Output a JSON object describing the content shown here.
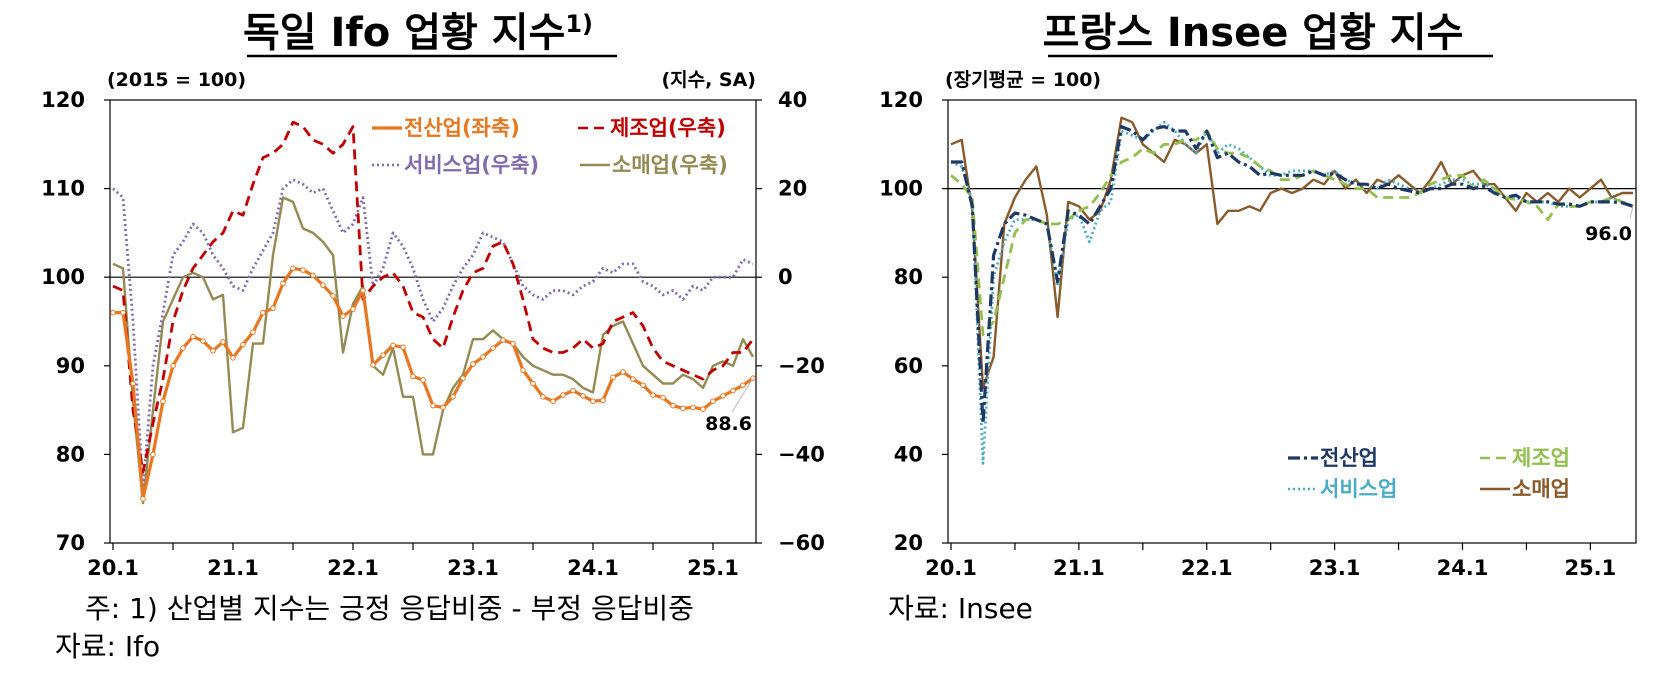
{
  "chart_data": [
    {
      "type": "line",
      "title": "독일 Ifo 업황 지수",
      "title_sup": "1)",
      "left_unit": "(2015 = 100)",
      "right_unit": "(지수, SA)",
      "y_left_ticks": [
        "120",
        "110",
        "100",
        "90",
        "80",
        "70"
      ],
      "y_right_ticks": [
        "40",
        "20",
        "0",
        "-20",
        "-40",
        "-60"
      ],
      "ylim_left": [
        70,
        120
      ],
      "ylim_right": [
        -60,
        40
      ],
      "x_ticks": [
        "20.1",
        "21.1",
        "22.1",
        "23.1",
        "24.1",
        "25.1"
      ],
      "reference_line_left": 100,
      "last_value_label": "88.6",
      "legend_placement": "top-right",
      "series": [
        {
          "name": "전산업(좌축)",
          "axis": "left",
          "color": "#E87722",
          "style": "solid-marker",
          "values": [
            96,
            96,
            88,
            75,
            80,
            86,
            90,
            92,
            93.3,
            92.8,
            91.7,
            92.7,
            90.9,
            92.4,
            93.8,
            96,
            96.5,
            99.3,
            101,
            100.8,
            100.2,
            99.1,
            97.9,
            95.6,
            96.4,
            98.5,
            90.1,
            91.2,
            92.3,
            92.1,
            88.8,
            88.4,
            85.5,
            85.3,
            86.5,
            88.6,
            90.2,
            91,
            92,
            92.9,
            92.5,
            89.5,
            88,
            86.5,
            86,
            86.7,
            87.2,
            86.6,
            86,
            86.1,
            88.7,
            89.3,
            88.5,
            87.8,
            86.7,
            86.4,
            85.5,
            85.2,
            85.3,
            85.1,
            86,
            86.6,
            87.2,
            87.8,
            88.6
          ]
        },
        {
          "name": "제조업(우축)",
          "axis": "right",
          "color": "#C00000",
          "style": "dashed",
          "values": [
            -2,
            -3,
            -30,
            -44,
            -33,
            -23,
            -10,
            -3,
            2,
            5,
            8,
            10,
            15,
            14,
            21,
            27,
            28,
            30,
            35,
            34,
            31,
            30,
            28,
            30,
            34,
            -5,
            -2,
            0,
            1,
            -2,
            -8,
            -9,
            -14,
            -16,
            -9,
            -3,
            1,
            2,
            7,
            8,
            3,
            -5,
            -14,
            -16,
            -17,
            -17,
            -16,
            -14,
            -16,
            -15,
            -10,
            -9,
            -8,
            -11,
            -16,
            -19,
            -20,
            -21,
            -22,
            -23,
            -21,
            -20,
            -17,
            -17,
            -14
          ]
        },
        {
          "name": "서비스업(우축)",
          "axis": "right",
          "color": "#7F6BAE",
          "style": "dotted",
          "values": [
            20,
            18,
            -10,
            -48,
            -20,
            -8,
            5,
            8,
            12,
            10,
            5,
            2,
            -2,
            -3,
            2,
            6,
            10,
            20,
            22,
            21,
            19,
            20,
            15,
            10,
            12,
            18,
            -2,
            2,
            10,
            7,
            2,
            -5,
            -10,
            -7,
            -2,
            2,
            5,
            10,
            9,
            8,
            3,
            -2,
            -4,
            -5,
            -3,
            -3,
            -4,
            -2,
            -1,
            2,
            1,
            3,
            3,
            -1,
            -2,
            -4,
            -3,
            -5,
            -2,
            -3,
            0,
            0,
            0,
            4,
            3
          ]
        },
        {
          "name": "소매업(우축)",
          "axis": "right",
          "color": "#948A54",
          "style": "solid",
          "values": [
            3,
            2,
            -28,
            -51,
            -30,
            -10,
            -5,
            0,
            1,
            0,
            -5,
            -4,
            -35,
            -34,
            -15,
            -15,
            5,
            18,
            17,
            11,
            10,
            8,
            5,
            -17,
            -6,
            -2,
            -20,
            -22,
            -16,
            -27,
            -27,
            -40,
            -40,
            -30,
            -25,
            -22,
            -14,
            -14,
            -12,
            -14,
            -15,
            -18,
            -20,
            -21,
            -22,
            -22,
            -23,
            -25,
            -26,
            -13,
            -11,
            -10,
            -15,
            -20,
            -22,
            -24,
            -24,
            -22,
            -23,
            -25,
            -20,
            -19,
            -20,
            -14,
            -18
          ]
        }
      ]
    },
    {
      "type": "line",
      "title": "프랑스 Insee 업황 지수",
      "left_unit": "(장기평균 = 100)",
      "y_left_ticks": [
        "120",
        "100",
        "80",
        "60",
        "40",
        "20"
      ],
      "ylim_left": [
        20,
        120
      ],
      "x_ticks": [
        "20.1",
        "21.1",
        "22.1",
        "23.1",
        "24.1",
        "25.1"
      ],
      "reference_line_left": 100,
      "last_value_label": "96.0",
      "legend_placement": "bottom-right",
      "series": [
        {
          "name": "전산업",
          "color": "#1F3864",
          "style": "dash-dot",
          "values": [
            106,
            106,
            96,
            47,
            85,
            92,
            94.5,
            94,
            93,
            92,
            79,
            95,
            94,
            92,
            96,
            100,
            114,
            113,
            111,
            113.5,
            114,
            113,
            113,
            109,
            113,
            107,
            108,
            106,
            105,
            103,
            103.5,
            103,
            103,
            103,
            104,
            103,
            103.5,
            102,
            101,
            101,
            100,
            101,
            100,
            99.5,
            99,
            100,
            100,
            101,
            101,
            100,
            100.5,
            99,
            98,
            98.5,
            97,
            97,
            97,
            96.5,
            96.5,
            96,
            97,
            97,
            97,
            96.8,
            96
          ]
        },
        {
          "name": "제조업",
          "color": "#92C050",
          "style": "dashed",
          "values": [
            103,
            101,
            98,
            67,
            70,
            80,
            90,
            93,
            93,
            92,
            92,
            93,
            95,
            96,
            99,
            103,
            106,
            107,
            109,
            108,
            110,
            110,
            111,
            111,
            113,
            109,
            108,
            108,
            107,
            105,
            104,
            102,
            102,
            103,
            104,
            103,
            102,
            101,
            100,
            100,
            98,
            98,
            98,
            98,
            99,
            101,
            102,
            103,
            103,
            100,
            102,
            100,
            98,
            97.5,
            97,
            96,
            93,
            96.5,
            96,
            96,
            97,
            97,
            98,
            97,
            96
          ]
        },
        {
          "name": "서비스업",
          "color": "#4BACC6",
          "style": "dotted",
          "values": [
            106,
            105,
            97,
            38,
            80,
            88,
            93,
            93,
            93,
            92,
            78,
            93,
            94,
            88,
            95,
            97,
            113,
            112,
            111,
            113,
            115,
            113,
            110,
            108,
            113,
            108,
            110,
            109,
            107,
            105,
            103,
            103,
            104,
            104,
            104,
            103,
            104,
            102,
            101,
            101,
            100,
            102,
            101,
            100,
            99,
            100,
            101,
            102,
            102,
            101,
            101,
            100,
            98,
            98,
            97,
            97,
            97,
            96,
            96,
            96,
            97,
            97,
            98,
            97,
            96
          ]
        },
        {
          "name": "소매업",
          "color": "#8B5A2B",
          "style": "solid",
          "values": [
            110,
            111,
            95,
            55,
            62,
            92,
            98,
            102,
            105,
            94,
            71,
            97,
            96,
            93,
            95,
            102,
            116,
            115,
            110,
            108,
            106,
            111,
            110,
            108,
            110,
            92,
            95,
            95,
            96,
            95,
            99,
            100,
            99,
            100,
            102,
            101,
            104,
            100,
            102,
            99,
            102,
            101,
            103,
            101,
            99,
            102,
            106,
            101,
            103,
            104,
            101,
            101,
            98,
            95,
            99,
            97,
            99,
            97,
            100,
            98,
            100,
            102,
            98,
            99,
            99
          ]
        }
      ]
    }
  ],
  "notes": {
    "left_note": "주:  1) 산업별 지수는 긍정 응답비중 - 부정 응답비중",
    "left_source": "자료:  Ifo",
    "right_source": "자료:  Insee"
  }
}
